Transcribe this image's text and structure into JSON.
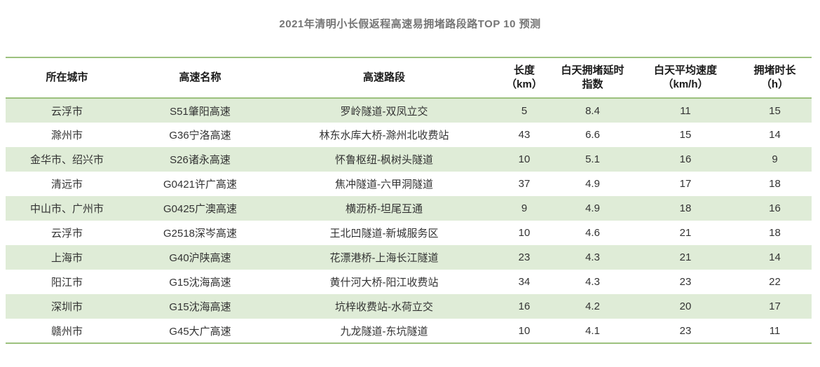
{
  "title": "2021年清明小长假返程高速易拥堵路段路TOP 10 预测",
  "colors": {
    "accent_border_green": "#9cc17e",
    "row_stripe_green": "#dfecd7",
    "title_gray": "#757575",
    "header_text": "#1a1a1a",
    "body_text": "#333333"
  },
  "chart_data": {
    "type": "table",
    "title": "2021年清明小长假返程高速易拥堵路段路TOP 10 预测",
    "legend_position": "none",
    "grid": "striped-rows",
    "columns": [
      {
        "key": "city",
        "label": "所在城市"
      },
      {
        "key": "highway-name",
        "label": "高速名称"
      },
      {
        "key": "highway-section",
        "label": "高速路段"
      },
      {
        "key": "length-km",
        "label": "长度\n（km）"
      },
      {
        "key": "daytime-delay-index",
        "label": "白天拥堵延时\n指数"
      },
      {
        "key": "daytime-avg-speed",
        "label": "白天平均速度\n（km/h）"
      },
      {
        "key": "congestion-duration",
        "label": "拥堵时长\n（h）"
      }
    ],
    "rows": [
      [
        "云浮市",
        "S51肇阳高速",
        "罗岭隧道-双凤立交",
        "5",
        "8.4",
        "11",
        "15"
      ],
      [
        "滁州市",
        "G36宁洛高速",
        "林东水库大桥-滁州北收费站",
        "43",
        "6.6",
        "15",
        "14"
      ],
      [
        "金华市、绍兴市",
        "S26诸永高速",
        "怀鲁枢纽-枫树头隧道",
        "10",
        "5.1",
        "16",
        "9"
      ],
      [
        "清远市",
        "G0421许广高速",
        "焦冲隧道-六甲洞隧道",
        "37",
        "4.9",
        "17",
        "18"
      ],
      [
        "中山市、广州市",
        "G0425广澳高速",
        "横沥桥-坦尾互通",
        "9",
        "4.9",
        "18",
        "16"
      ],
      [
        "云浮市",
        "G2518深岑高速",
        "王北凹隧道-新城服务区",
        "10",
        "4.6",
        "21",
        "18"
      ],
      [
        "上海市",
        "G40沪陕高速",
        "花漂港桥-上海长江隧道",
        "23",
        "4.3",
        "21",
        "14"
      ],
      [
        "阳江市",
        "G15沈海高速",
        "黄什河大桥-阳江收费站",
        "34",
        "4.3",
        "23",
        "22"
      ],
      [
        "深圳市",
        "G15沈海高速",
        "坑梓收费站-水荷立交",
        "16",
        "4.2",
        "20",
        "17"
      ],
      [
        "赣州市",
        "G45大广高速",
        "九龙隧道-东坑隧道",
        "10",
        "4.1",
        "23",
        "11"
      ]
    ]
  }
}
